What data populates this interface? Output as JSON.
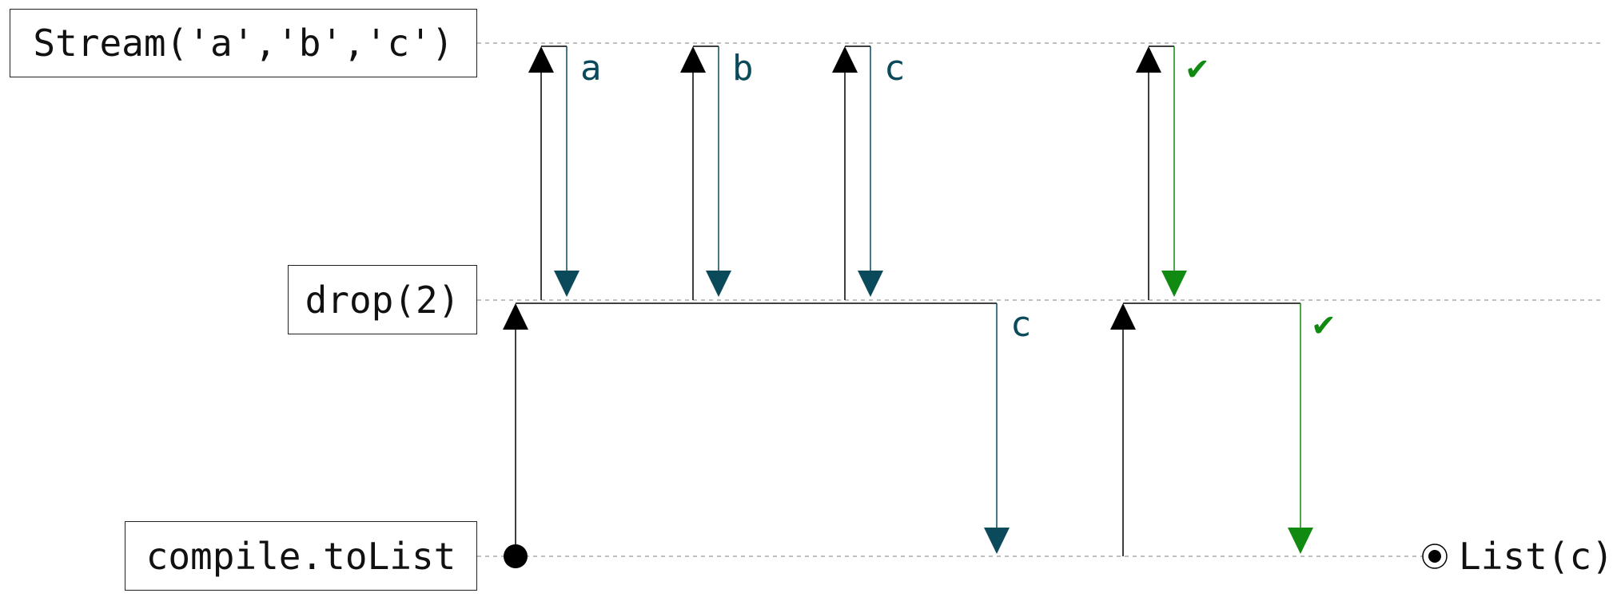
{
  "lanes": {
    "stream": "Stream('a','b','c')",
    "drop": "drop(2)",
    "tolist": "compile.toList"
  },
  "signals": {
    "a": "a",
    "b": "b",
    "c_upper": "c",
    "c_lower": "c",
    "done_upper": "✔",
    "done_lower": "✔"
  },
  "result": "List(c)",
  "colors": {
    "request": "#000000",
    "data": "#0b4a5a",
    "complete": "#108a10",
    "baseline": "#aaaaaa"
  }
}
